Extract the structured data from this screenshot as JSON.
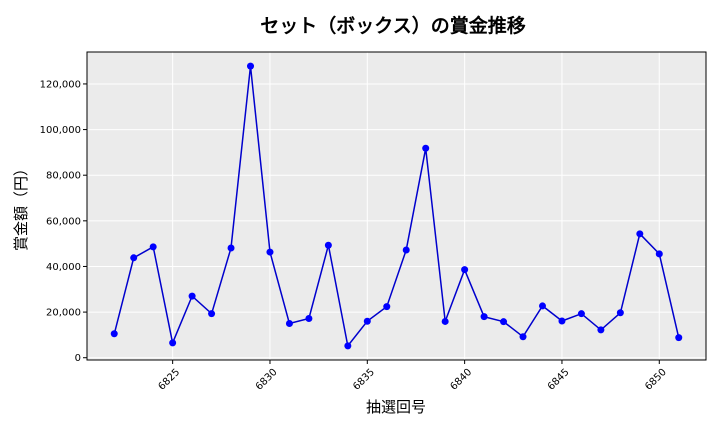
{
  "chart_data": {
    "type": "line",
    "title": "セット（ボックス）の賞金推移",
    "xlabel": "抽選回号",
    "ylabel": "賞金額（円）",
    "grid": true,
    "xlim": [
      6820.6,
      6852.4
    ],
    "ylim": [
      -1000,
      134000
    ],
    "x_ticks": [
      6825,
      6830,
      6835,
      6840,
      6845,
      6850
    ],
    "x_tick_labels": [
      "6825",
      "6830",
      "6835",
      "6840",
      "6845",
      "6850"
    ],
    "y_ticks": [
      0,
      20000,
      40000,
      60000,
      80000,
      100000,
      120000
    ],
    "y_tick_labels": [
      "0",
      "20,000",
      "40,000",
      "60,000",
      "80,000",
      "100,000",
      "120,000"
    ],
    "colors": {
      "line": "#0000cd",
      "marker": "#0000ff",
      "plot_bg": "#ebebeb"
    },
    "series": [
      {
        "x": [
          6822,
          6823,
          6824,
          6825,
          6826,
          6827,
          6828,
          6829,
          6830,
          6831,
          6832,
          6833,
          6834,
          6835,
          6836,
          6837,
          6838,
          6839,
          6840,
          6841,
          6842,
          6843,
          6844,
          6845,
          6846,
          6847,
          6848,
          6849,
          6850,
          6851
        ],
        "values": [
          10500,
          43800,
          48600,
          6500,
          27000,
          19300,
          48100,
          127800,
          46300,
          15000,
          17200,
          49300,
          5200,
          16000,
          22400,
          47200,
          91800,
          15900,
          38600,
          18000,
          15800,
          9200,
          22700,
          16100,
          19300,
          12200,
          19700,
          54300,
          45500,
          8800
        ]
      }
    ]
  }
}
